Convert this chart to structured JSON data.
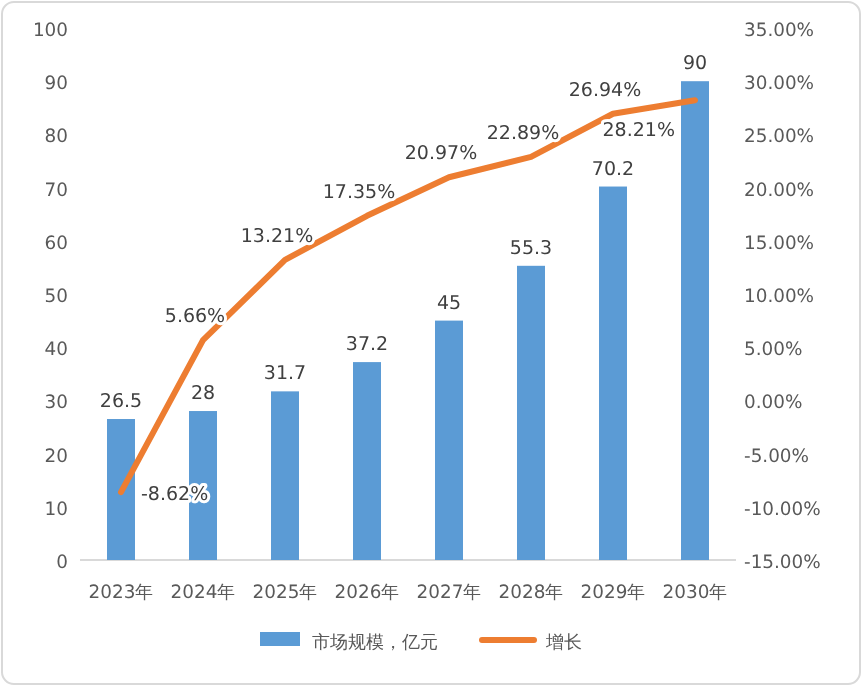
{
  "chart_data": {
    "type": "bar",
    "categories": [
      "2023年",
      "2024年",
      "2025年",
      "2026年",
      "2027年",
      "2028年",
      "2029年",
      "2030年"
    ],
    "series": [
      {
        "name": "市场规模，亿元",
        "color": "#5b9bd5",
        "values": [
          26.5,
          28,
          31.7,
          37.2,
          45,
          55.3,
          70.2,
          90
        ],
        "value_labels": [
          "26.5",
          "28",
          "31.7",
          "37.2",
          "45",
          "55.3",
          "70.2",
          "90"
        ]
      },
      {
        "name": "增长",
        "type": "line",
        "axis": "y2",
        "color": "#ed7d31",
        "values": [
          -8.62,
          5.66,
          13.21,
          17.35,
          20.97,
          22.89,
          26.94,
          28.21
        ],
        "value_labels": [
          "-8.62%",
          "5.66%",
          "13.21%",
          "17.35%",
          "20.97%",
          "22.89%",
          "26.94%",
          "28.21%"
        ]
      }
    ],
    "ylim": [
      0,
      100
    ],
    "yticks": [
      0,
      10,
      20,
      30,
      40,
      50,
      60,
      70,
      80,
      90,
      100
    ],
    "y2lim": [
      -15,
      35
    ],
    "y2ticks": [
      {
        "value": -15,
        "label": "-15.00%"
      },
      {
        "value": -10,
        "label": "-10.00%"
      },
      {
        "value": -5,
        "label": "-5.00%"
      },
      {
        "value": 0,
        "label": "0.00%"
      },
      {
        "value": 5,
        "label": "5.00%"
      },
      {
        "value": 10,
        "label": "10.00%"
      },
      {
        "value": 15,
        "label": "15.00%"
      },
      {
        "value": 20,
        "label": "20.00%"
      },
      {
        "value": 25,
        "label": "25.00%"
      },
      {
        "value": 30,
        "label": "30.00%"
      },
      {
        "value": 35,
        "label": "35.00%"
      }
    ],
    "grid": false,
    "legend": "bottom",
    "marker": "none",
    "line_style": "solid"
  }
}
